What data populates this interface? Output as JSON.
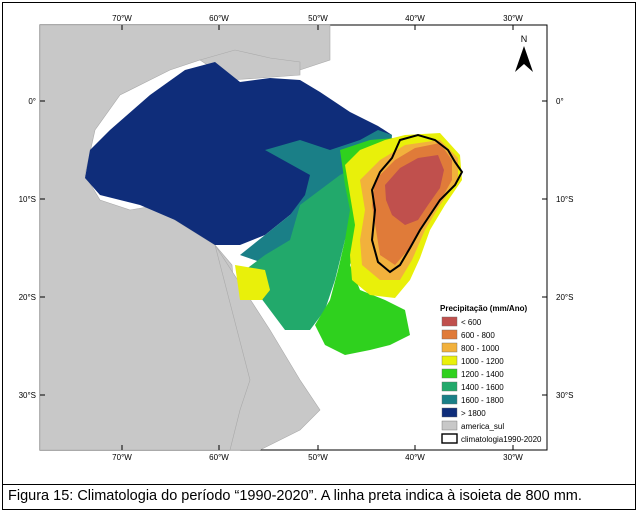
{
  "map": {
    "top_ticks": [
      "70°W",
      "60°W",
      "50°W",
      "40°W",
      "30°W"
    ],
    "bottom_ticks": [
      "70°W",
      "60°W",
      "50°W",
      "40°W",
      "30°W"
    ],
    "left_ticks": [
      "0°",
      "10°S",
      "20°S",
      "30°S"
    ],
    "right_ticks": [
      "0°",
      "10°S",
      "20°S",
      "30°S"
    ],
    "north_label": "N",
    "legend": {
      "title": "Precipitação (mm/Ano)",
      "items": [
        {
          "label": "< 600",
          "color": "#c0504d"
        },
        {
          "label": "600 - 800",
          "color": "#e07b39"
        },
        {
          "label": "800 - 1000",
          "color": "#f2b13c"
        },
        {
          "label": "1000 - 1200",
          "color": "#e9f00a"
        },
        {
          "label": "1200 - 1400",
          "color": "#2fd11e"
        },
        {
          "label": "1400 - 1600",
          "color": "#22a96b"
        },
        {
          "label": "1600 - 1800",
          "color": "#1a7f87"
        },
        {
          "label": "> 1800",
          "color": "#0f2d7a"
        },
        {
          "label": "america_sul",
          "color": "#c8c8c8"
        },
        {
          "label": "climatologia1990-2020",
          "color": "#ffffff"
        }
      ]
    }
  },
  "caption": "Figura 15: Climatologia do período “1990-2020”. A linha preta indica à isoieta de 800 mm."
}
